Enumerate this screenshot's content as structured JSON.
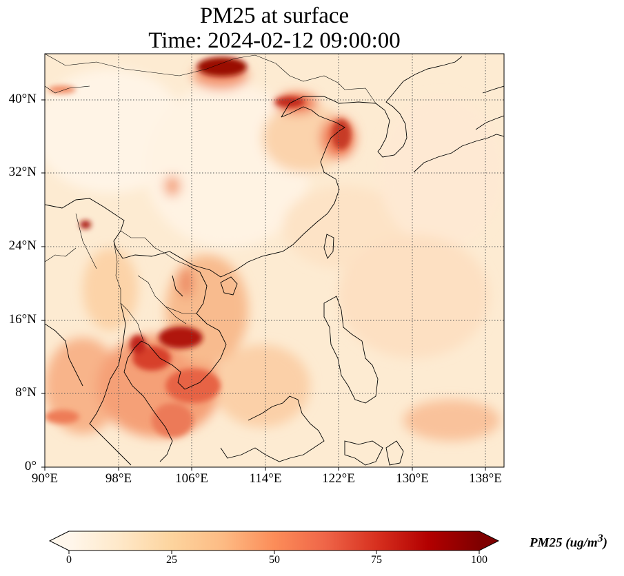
{
  "title": {
    "line1": "PM25 at surface",
    "line2": "Time: 2024-02-12 09:00:00"
  },
  "map": {
    "extent": {
      "lon": [
        90,
        140
      ],
      "lat": [
        0,
        45
      ]
    },
    "lat_ticks": [
      {
        "value": 0,
        "label": "0°"
      },
      {
        "value": 8,
        "label": "8°N"
      },
      {
        "value": 16,
        "label": "16°N"
      },
      {
        "value": 24,
        "label": "24°N"
      },
      {
        "value": 32,
        "label": "32°N"
      },
      {
        "value": 40,
        "label": "40°N"
      }
    ],
    "lon_ticks": [
      {
        "value": 90,
        "label": "90°E"
      },
      {
        "value": 98,
        "label": "98°E"
      },
      {
        "value": 106,
        "label": "106°E"
      },
      {
        "value": 114,
        "label": "114°E"
      },
      {
        "value": 122,
        "label": "122°E"
      },
      {
        "value": 130,
        "label": "130°E"
      },
      {
        "value": 138,
        "label": "138°E"
      }
    ],
    "gridlines": "dotted"
  },
  "colorbar": {
    "colormap": "OrRd",
    "min": 0,
    "max": 100,
    "extend": "both",
    "ticks": [
      {
        "value": 0,
        "label": "0"
      },
      {
        "value": 25,
        "label": "25"
      },
      {
        "value": 50,
        "label": "50"
      },
      {
        "value": 75,
        "label": "75"
      },
      {
        "value": 100,
        "label": "100"
      }
    ],
    "label_text": "PM25 (ug/m",
    "label_sup": "3",
    "label_close": ")",
    "colors": [
      "#fff7ec",
      "#fee8c8",
      "#fdd49e",
      "#fdbb84",
      "#fc8d59",
      "#ef6548",
      "#d7301f",
      "#b30000",
      "#7f0000"
    ]
  }
}
